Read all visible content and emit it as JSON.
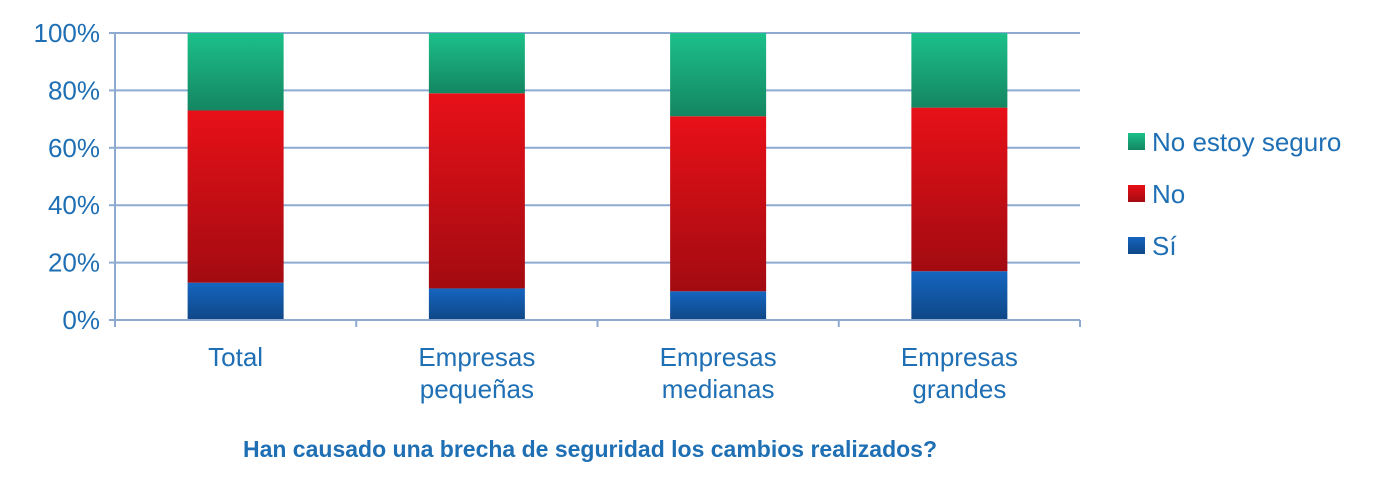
{
  "chart_data": {
    "type": "bar",
    "stacked": true,
    "title": "Han causado una brecha de seguridad los cambios realizados?",
    "categories": [
      [
        "Total"
      ],
      [
        "Empresas",
        "pequeñas"
      ],
      [
        "Empresas",
        "medianas"
      ],
      [
        "Empresas",
        "grandes"
      ]
    ],
    "series": [
      {
        "name": "Sí",
        "values": [
          13,
          11,
          10,
          17
        ],
        "color": "#1565c0"
      },
      {
        "name": "No",
        "values": [
          60,
          68,
          61,
          57
        ],
        "color": "#e81018"
      },
      {
        "name": "No estoy seguro",
        "values": [
          27,
          21,
          29,
          26
        ],
        "color": "#1cc08a"
      }
    ],
    "yticks": [
      "0%",
      "20%",
      "40%",
      "60%",
      "80%",
      "100%"
    ],
    "ylim": [
      0,
      100
    ],
    "grid": true,
    "legend": "right"
  }
}
